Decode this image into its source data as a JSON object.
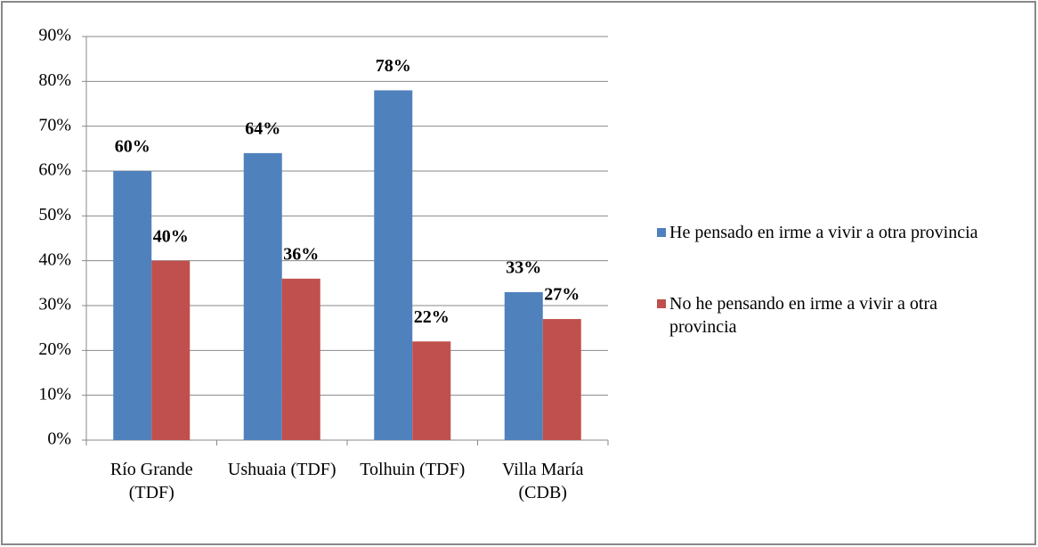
{
  "chart_data": {
    "type": "bar",
    "categories": [
      "Río Grande (TDF)",
      "Ushuaia (TDF)",
      "Tolhuin (TDF)",
      "Villa María (CDB)"
    ],
    "series": [
      {
        "name": "He pensado en irme a vivir a otra provincia",
        "color": "#4f81bd",
        "values": [
          60,
          64,
          78,
          33
        ],
        "value_labels": [
          "60%",
          "64%",
          "78%",
          "33%"
        ]
      },
      {
        "name": "No he pensando en irme a vivir a otra provincia",
        "color": "#c0504d",
        "values": [
          40,
          36,
          22,
          27
        ],
        "value_labels": [
          "40%",
          "36%",
          "22%",
          "27%"
        ]
      }
    ],
    "ylim": [
      0,
      90
    ],
    "yticks": [
      {
        "value": 0,
        "label": "0%"
      },
      {
        "value": 10,
        "label": "10%"
      },
      {
        "value": 20,
        "label": "20%"
      },
      {
        "value": 30,
        "label": "30%"
      },
      {
        "value": 40,
        "label": "40%"
      },
      {
        "value": 50,
        "label": "50%"
      },
      {
        "value": 60,
        "label": "60%"
      },
      {
        "value": 70,
        "label": "70%"
      },
      {
        "value": 80,
        "label": "80%"
      },
      {
        "value": 90,
        "label": "90%"
      }
    ],
    "grid": true,
    "legend": "right"
  }
}
